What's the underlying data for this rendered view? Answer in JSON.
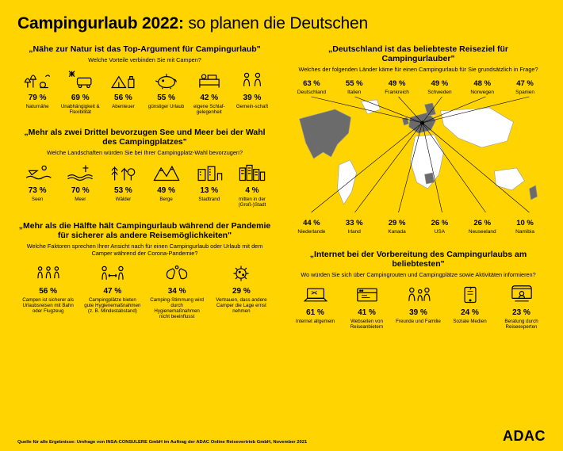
{
  "colors": {
    "bg": "#ffd400",
    "ink": "#000000",
    "map_light": "#ffffff",
    "map_dark": "#6b6b6b",
    "stroke": "#000000"
  },
  "headline": {
    "bold": "Campingurlaub 2022:",
    "rest": " so planen die Deutschen"
  },
  "sections": {
    "nature": {
      "title": "„Nähe zur Natur ist das Top-Argument für Campingurlaub\"",
      "sub": "Welche Vorteile verbinden Sie mit Campen?",
      "items": [
        {
          "pct": "79 %",
          "label": "Naturnähe",
          "icon": "trees"
        },
        {
          "pct": "69 %",
          "label": "Unabhängigkeit & Flexibilität",
          "icon": "van"
        },
        {
          "pct": "56 %",
          "label": "Abenteuer",
          "icon": "camp"
        },
        {
          "pct": "55 %",
          "label": "günstiger Urlaub",
          "icon": "piggy"
        },
        {
          "pct": "42 %",
          "label": "eigene Schlaf-gelegenheit",
          "icon": "bed"
        },
        {
          "pct": "39 %",
          "label": "Gemein-schaft",
          "icon": "people"
        }
      ]
    },
    "landscape": {
      "title": "„Mehr als zwei Drittel bevorzugen See und Meer bei der Wahl des Campingplatzes\"",
      "sub": "Welche Landschaften würden Sie bei Ihrer Campingplatz-Wahl bevorzugen?",
      "items": [
        {
          "pct": "73 %",
          "label": "Seen",
          "icon": "lake"
        },
        {
          "pct": "70 %",
          "label": "Meer",
          "icon": "sea"
        },
        {
          "pct": "53 %",
          "label": "Wälder",
          "icon": "forest"
        },
        {
          "pct": "49 %",
          "label": "Berge",
          "icon": "mountains"
        },
        {
          "pct": "13 %",
          "label": "Stadtrand",
          "icon": "suburb"
        },
        {
          "pct": "4 %",
          "label": "mitten in der (Groß-)Stadt",
          "icon": "city"
        }
      ]
    },
    "pandemic": {
      "title": "„Mehr als die Hälfte hält Campingurlaub während der Pandemie für sicherer als andere Reisemöglichkeiten\"",
      "sub": "Welche Faktoren sprechen Ihrer Ansicht nach für einen Campingurlaub oder Urlaub mit dem Camper während der Corona-Pandemie?",
      "items": [
        {
          "pct": "56 %",
          "label": "Campen ist sicherer als Urlaubsreisen mit Bahn oder Flugzeug",
          "icon": "crowd"
        },
        {
          "pct": "47 %",
          "label": "Campingplätze bieten gute Hygienemaßnahmen (z. B. Mindestabstand)",
          "icon": "distance"
        },
        {
          "pct": "34 %",
          "label": "Camping-Stimmung wird durch Hygienemaßnahmen nicht beeinflusst",
          "icon": "hands"
        },
        {
          "pct": "29 %",
          "label": "Vertrauen, dass andere Camper die Lage ernst nehmen",
          "icon": "virus"
        }
      ]
    },
    "destinations": {
      "title": "„Deutschland ist das beliebteste Reiseziel für Campingurlauber\"",
      "sub": "Welches der folgenden Länder käme für einen Campingurlaub für Sie grundsätzlich in Frage?",
      "row1": [
        {
          "pct": "63 %",
          "label": "Deutschland"
        },
        {
          "pct": "55 %",
          "label": "Italien"
        },
        {
          "pct": "49 %",
          "label": "Frankreich"
        },
        {
          "pct": "49 %",
          "label": "Schweden"
        },
        {
          "pct": "48 %",
          "label": "Norwegen"
        },
        {
          "pct": "47 %",
          "label": "Spanien"
        }
      ],
      "row2": [
        {
          "pct": "44 %",
          "label": "Niederlande"
        },
        {
          "pct": "33 %",
          "label": "Irland"
        },
        {
          "pct": "29 %",
          "label": "Kanada"
        },
        {
          "pct": "26 %",
          "label": "USA"
        },
        {
          "pct": "26 %",
          "label": "Neuseeland"
        },
        {
          "pct": "10 %",
          "label": "Namibia"
        }
      ]
    },
    "internet": {
      "title": "„Internet bei der Vorbereitung des Campingurlaubs am beliebtesten\"",
      "sub": "Wo würden Sie sich über Campingrouten und Campingplätze sowie Aktivitäten informieren?",
      "items": [
        {
          "pct": "61 %",
          "label": "Internet allgemein",
          "icon": "laptop"
        },
        {
          "pct": "41 %",
          "label": "Webseiten von Reiseanbietern",
          "icon": "website"
        },
        {
          "pct": "39 %",
          "label": "Freunde und Familie",
          "icon": "family"
        },
        {
          "pct": "24 %",
          "label": "Soziale Medien",
          "icon": "social"
        },
        {
          "pct": "23 %",
          "label": "Beratung durch Reiseexperten",
          "icon": "desk"
        }
      ]
    }
  },
  "source": "Quelle für alle Ergebnisse: Umfrage von INSA-CONSULERE GmbH im Auftrag der ADAC Online Reisevertrieb GmbH, November 2021",
  "logo": "ADAC"
}
